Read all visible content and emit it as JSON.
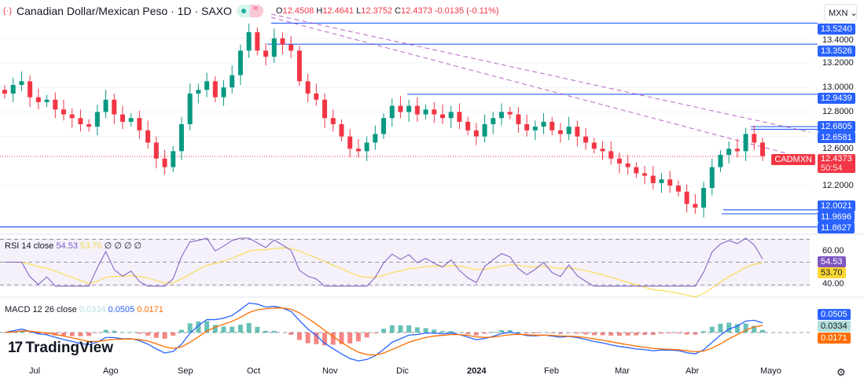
{
  "header": {
    "title": "Canadian Dollar/Mexican Peso · 1D · SAXO",
    "o": "O",
    "o_val": "12.4508",
    "h": "H",
    "h_val": "12.4641",
    "l": "L",
    "l_val": "12.3752",
    "c": "C",
    "c_val": "12.4373",
    "change": "-0.0135 (-0.11%)"
  },
  "currency": "MXN",
  "symbol_tag": "CADMXN",
  "last_price": "12.4373",
  "countdown": "50:54",
  "price_ticks": [
    "13.4000",
    "13.2000",
    "13.0000",
    "12.8000",
    "12.6000",
    "12.2000"
  ],
  "level_labels": [
    "13.5240",
    "13.3526",
    "12.9439",
    "12.6805",
    "12.6581",
    "12.0021",
    "11.9696",
    "11.8627"
  ],
  "rsi": {
    "title": "RSI 14 close",
    "value": "54.53",
    "ma": "53.70",
    "flags": "∅ ∅ ∅ ∅",
    "ticks": [
      "60.00",
      "40.00"
    ]
  },
  "macd": {
    "title": "MACD 12 26 close",
    "hist": "0.0334",
    "macd": "0.0505",
    "signal": "0.0171"
  },
  "logo": "TradingView",
  "colors": {
    "up": "#089981",
    "down": "#f23645",
    "level": "#2962ff",
    "trend": "#9c27b0",
    "rsi": "#7e57c2",
    "rsi_ma": "#fdd835",
    "macd": "#2962ff",
    "signal": "#ff6d00"
  },
  "chart_data": {
    "type": "candlestick",
    "x_ticks": [
      "Jul",
      "Ago",
      "Sep",
      "Oct",
      "Nov",
      "Dic",
      "2024",
      "Feb",
      "Mar",
      "Abr",
      "Mayo"
    ],
    "closes": [
      12.95,
      13.02,
      13.05,
      12.92,
      12.88,
      12.9,
      12.82,
      12.78,
      12.75,
      12.7,
      12.68,
      12.8,
      12.9,
      12.78,
      12.72,
      12.75,
      12.65,
      12.55,
      12.42,
      12.35,
      12.48,
      12.7,
      12.95,
      12.98,
      13.05,
      12.92,
      13.0,
      13.1,
      13.3,
      13.45,
      13.3,
      13.25,
      13.4,
      13.35,
      13.3,
      13.05,
      12.95,
      12.9,
      12.75,
      12.7,
      12.6,
      12.5,
      12.48,
      12.55,
      12.62,
      12.75,
      12.85,
      12.8,
      12.85,
      12.78,
      12.82,
      12.78,
      12.75,
      12.8,
      12.72,
      12.65,
      12.6,
      12.7,
      12.75,
      12.8,
      12.78,
      12.7,
      12.65,
      12.68,
      12.72,
      12.65,
      12.62,
      12.68,
      12.6,
      12.55,
      12.5,
      12.48,
      12.42,
      12.38,
      12.35,
      12.3,
      12.28,
      12.22,
      12.25,
      12.2,
      12.15,
      12.05,
      12.02,
      12.18,
      12.35,
      12.45,
      12.5,
      12.48,
      12.62,
      12.55,
      12.44
    ],
    "levels": [
      13.524,
      13.3526,
      12.9439,
      12.6805,
      12.6581,
      12.0021,
      11.9696,
      11.8627
    ],
    "y_range": [
      11.83,
      13.55
    ],
    "rsi_levels": [
      70,
      50,
      30
    ]
  }
}
